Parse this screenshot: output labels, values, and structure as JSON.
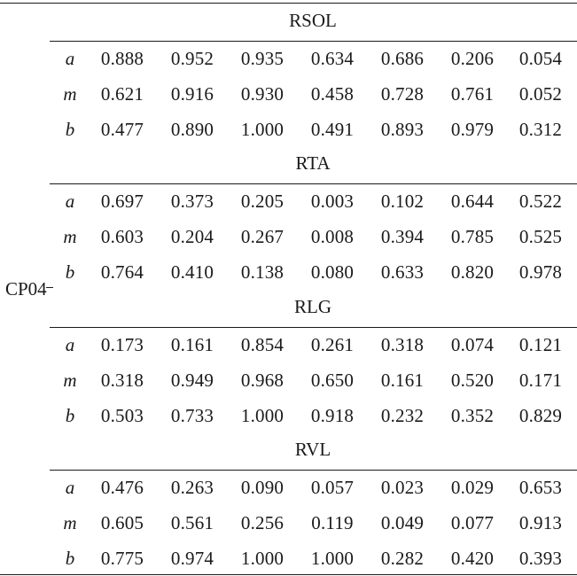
{
  "table": {
    "side_label": "CP04",
    "sections": [
      {
        "title": "RSOL",
        "rows": [
          {
            "label": "a",
            "values": [
              "0.888",
              "0.952",
              "0.935",
              "0.634",
              "0.686",
              "0.206",
              "0.054"
            ]
          },
          {
            "label": "m",
            "values": [
              "0.621",
              "0.916",
              "0.930",
              "0.458",
              "0.728",
              "0.761",
              "0.052"
            ]
          },
          {
            "label": "b",
            "values": [
              "0.477",
              "0.890",
              "1.000",
              "0.491",
              "0.893",
              "0.979",
              "0.312"
            ]
          }
        ]
      },
      {
        "title": "RTA",
        "rows": [
          {
            "label": "a",
            "values": [
              "0.697",
              "0.373",
              "0.205",
              "0.003",
              "0.102",
              "0.644",
              "0.522"
            ]
          },
          {
            "label": "m",
            "values": [
              "0.603",
              "0.204",
              "0.267",
              "0.008",
              "0.394",
              "0.785",
              "0.525"
            ]
          },
          {
            "label": "b",
            "values": [
              "0.764",
              "0.410",
              "0.138",
              "0.080",
              "0.633",
              "0.820",
              "0.978"
            ]
          }
        ]
      },
      {
        "title": "RLG",
        "rows": [
          {
            "label": "a",
            "values": [
              "0.173",
              "0.161",
              "0.854",
              "0.261",
              "0.318",
              "0.074",
              "0.121"
            ]
          },
          {
            "label": "m",
            "values": [
              "0.318",
              "0.949",
              "0.968",
              "0.650",
              "0.161",
              "0.520",
              "0.171"
            ]
          },
          {
            "label": "b",
            "values": [
              "0.503",
              "0.733",
              "1.000",
              "0.918",
              "0.232",
              "0.352",
              "0.829"
            ]
          }
        ]
      },
      {
        "title": "RVL",
        "rows": [
          {
            "label": "a",
            "values": [
              "0.476",
              "0.263",
              "0.090",
              "0.057",
              "0.023",
              "0.029",
              "0.653"
            ]
          },
          {
            "label": "m",
            "values": [
              "0.605",
              "0.561",
              "0.256",
              "0.119",
              "0.049",
              "0.077",
              "0.913"
            ]
          },
          {
            "label": "b",
            "values": [
              "0.775",
              "0.974",
              "1.000",
              "1.000",
              "0.282",
              "0.420",
              "0.393"
            ]
          }
        ]
      }
    ]
  }
}
